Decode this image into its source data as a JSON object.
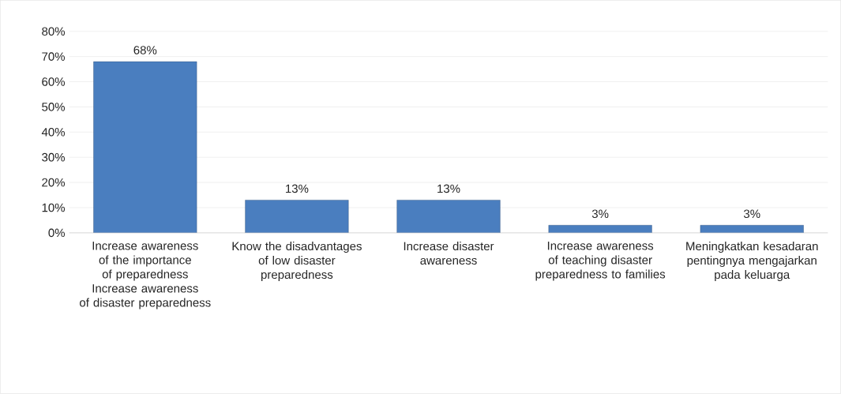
{
  "chart_data": {
    "type": "bar",
    "categories": [
      "Increase awareness of the importance of preparedness Increase awareness of disaster preparedness",
      "Know the disadvantages of low disaster preparedness",
      "Increase disaster awareness",
      "Increase awareness of teaching disaster preparedness to families",
      "Meningkatkan kesadaran pentingnya mengajarkan pada keluarga"
    ],
    "values": [
      68,
      13,
      13,
      3,
      3
    ],
    "value_labels": [
      "68%",
      "13%",
      "13%",
      "3%",
      "3%"
    ],
    "color": "#4a7ebf",
    "ylim": [
      0,
      80
    ],
    "yticks": [
      {
        "value": 0,
        "label": "0%"
      },
      {
        "value": 10,
        "label": "10%"
      },
      {
        "value": 20,
        "label": "20%"
      },
      {
        "value": 30,
        "label": "30%"
      },
      {
        "value": 40,
        "label": "40%"
      },
      {
        "value": 50,
        "label": "50%"
      },
      {
        "value": 60,
        "label": "60%"
      },
      {
        "value": 70,
        "label": "70%"
      },
      {
        "value": 80,
        "label": "80%"
      }
    ],
    "grid": "y"
  }
}
